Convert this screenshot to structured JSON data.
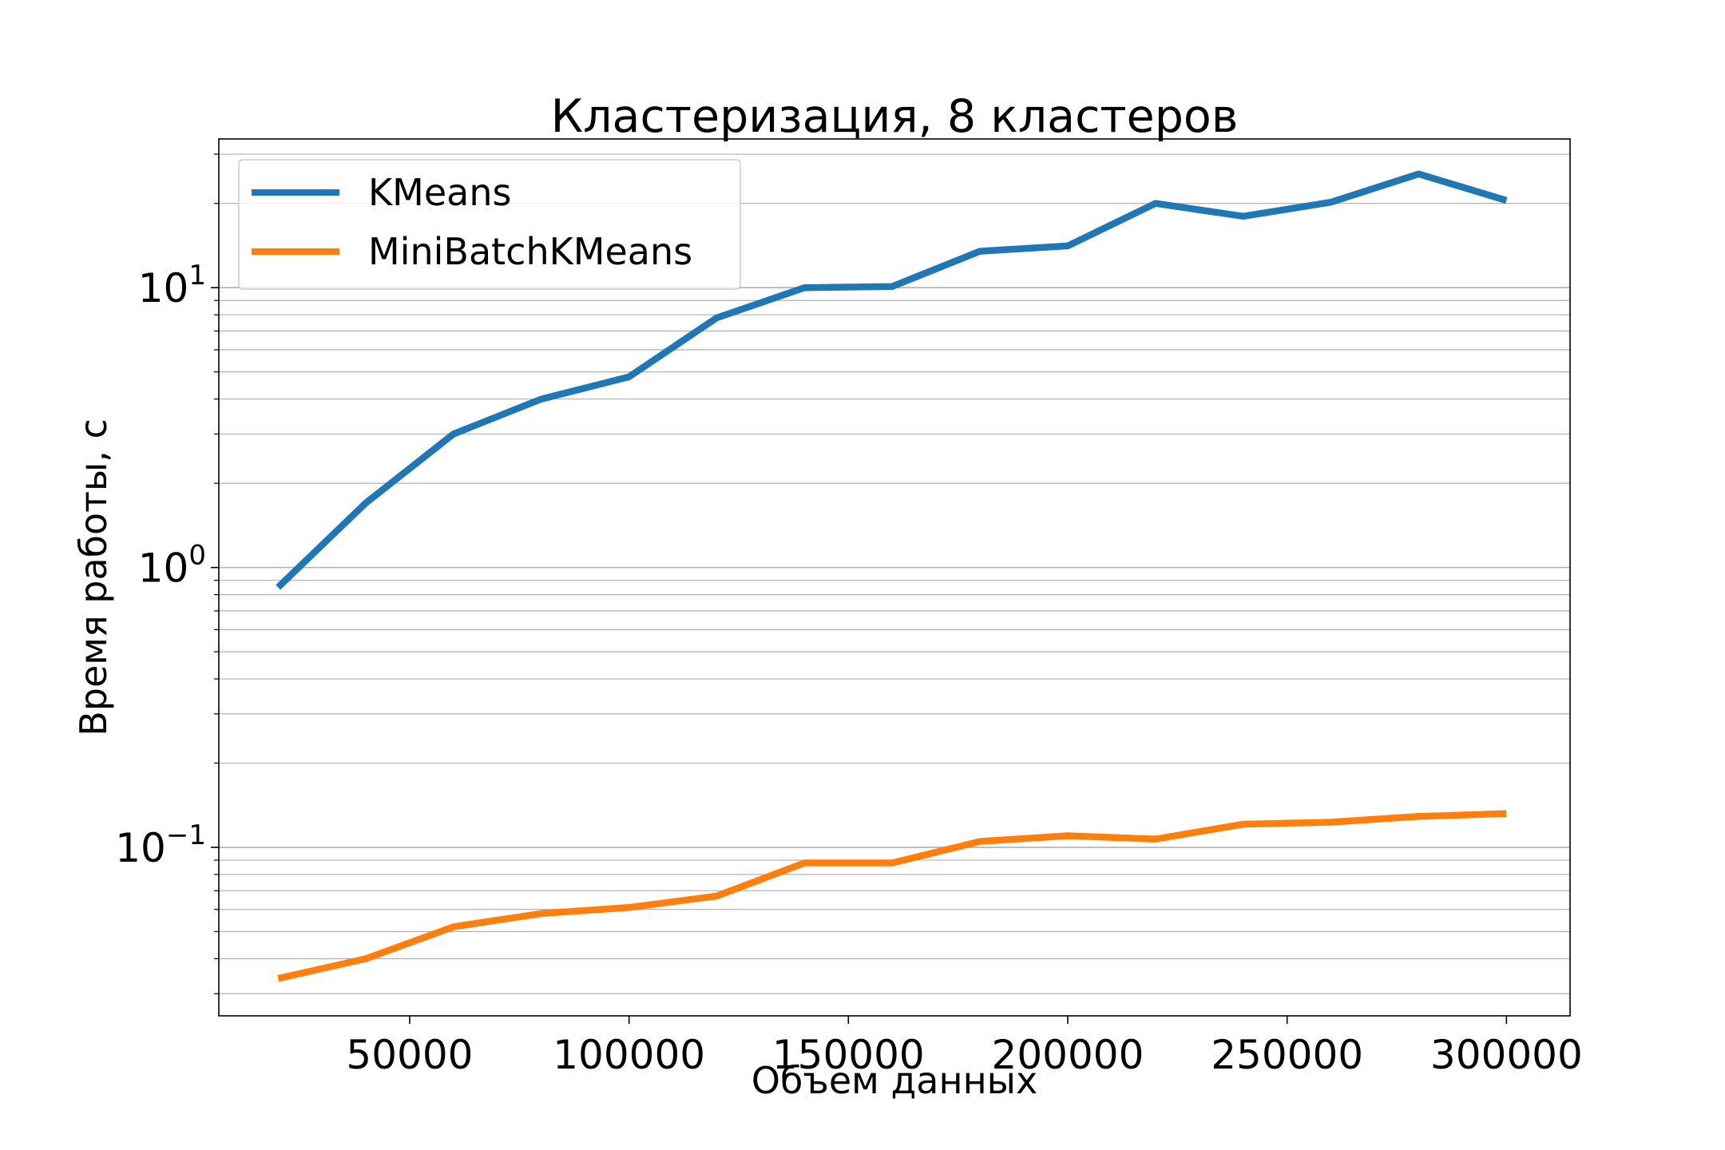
{
  "chart_data": {
    "type": "line",
    "title": "Кластеризация, 8 кластеров",
    "xlabel": "Объем данных",
    "ylabel": "Время работы, с",
    "yscale": "log",
    "xlim": [
      6500,
      314500
    ],
    "ylim": [
      0.025,
      34
    ],
    "xticks": [
      50000,
      100000,
      150000,
      200000,
      250000,
      300000
    ],
    "xtick_labels": [
      "50000",
      "100000",
      "150000",
      "200000",
      "250000",
      "300000"
    ],
    "yticks": [
      {
        "value": 10,
        "base": "10",
        "exp": "1"
      },
      {
        "value": 1,
        "base": "10",
        "exp": "0"
      },
      {
        "value": 0.1,
        "base": "10",
        "exp": "−1"
      }
    ],
    "grid": true,
    "legend_position": "top-left",
    "x": [
      20000,
      40000,
      60000,
      80000,
      100000,
      120000,
      140000,
      160000,
      180000,
      200000,
      220000,
      240000,
      260000,
      280000,
      300000
    ],
    "series": [
      {
        "name": "KMeans",
        "color": "#1f77b4",
        "values": [
          0.85,
          1.7,
          3.0,
          4.0,
          4.8,
          7.8,
          10.0,
          10.1,
          13.5,
          14.1,
          20.0,
          18.0,
          20.2,
          25.5,
          20.5
        ]
      },
      {
        "name": "MiniBatchKMeans",
        "color": "#ff7f0e",
        "values": [
          0.034,
          0.04,
          0.052,
          0.058,
          0.061,
          0.067,
          0.088,
          0.088,
          0.105,
          0.11,
          0.107,
          0.121,
          0.123,
          0.129,
          0.132
        ]
      }
    ]
  }
}
